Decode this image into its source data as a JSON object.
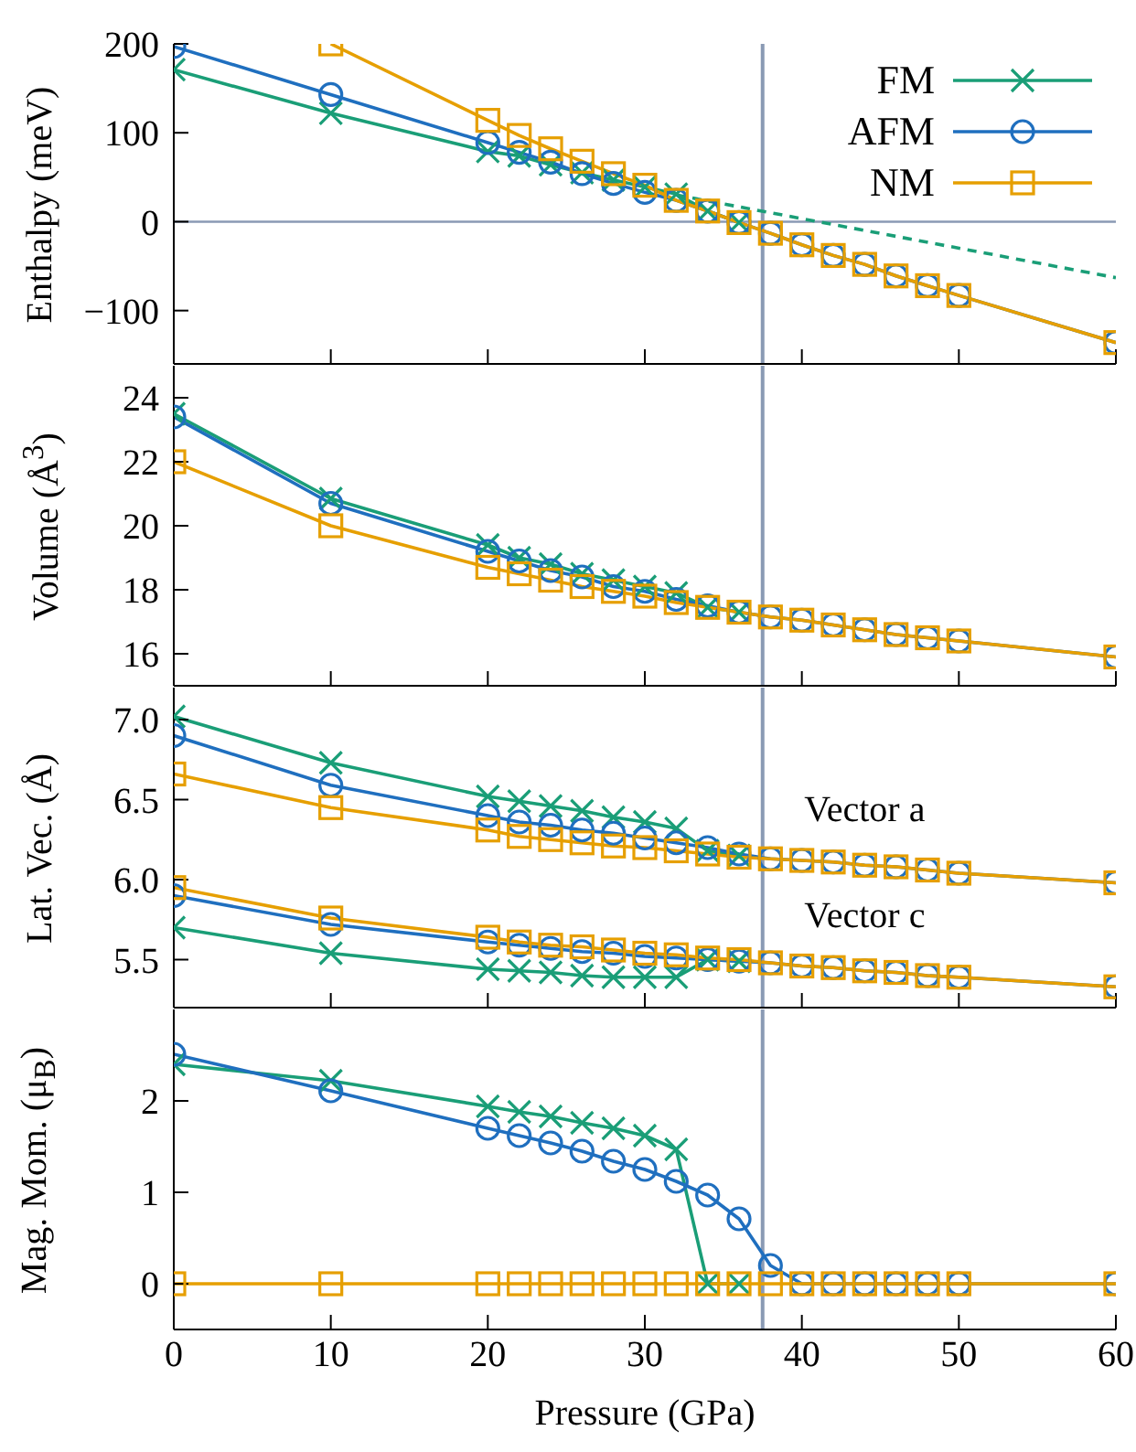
{
  "chart_data": [
    {
      "type": "line",
      "ylabel": "Enthalpy (meV)",
      "xlim": [
        0,
        60
      ],
      "xticks": [
        0,
        10,
        20,
        30,
        40,
        50,
        60
      ],
      "ylim": [
        -160,
        200
      ],
      "yticks": [
        {
          "value": -100,
          "label": "−100"
        },
        0,
        100,
        200
      ],
      "tick_labels": "y",
      "legend": "top right",
      "ref_lines": [
        {
          "axis": "x",
          "value": 37.5,
          "color": "#8a9ab4"
        },
        {
          "axis": "y",
          "value": 0,
          "color": "#8a9ab4"
        }
      ],
      "series": [
        {
          "name": "FM",
          "color": "#1a9e77",
          "marker": "cross",
          "x": [
            0,
            10,
            20,
            22,
            24,
            26,
            28,
            30,
            32,
            34,
            36
          ],
          "values": [
            171,
            122,
            79,
            74,
            64,
            55,
            47,
            39,
            31,
            12,
            -1
          ]
        },
        {
          "name": "AFM",
          "color": "#1f6fbf",
          "marker": "circle",
          "x": [
            0,
            10,
            20,
            22,
            24,
            26,
            28,
            30,
            32,
            34,
            36,
            38,
            40,
            42,
            44,
            46,
            48,
            50,
            60
          ],
          "values": [
            197,
            143,
            89,
            78,
            67,
            54,
            43,
            33,
            24,
            12,
            -1,
            -13,
            -26,
            -38,
            -48,
            -61,
            -72,
            -83,
            -136
          ]
        },
        {
          "name": "NM",
          "color": "#e69f00",
          "marker": "square",
          "x": [
            10,
            20,
            22,
            24,
            26,
            28,
            30,
            32,
            34,
            36,
            38,
            40,
            42,
            44,
            46,
            48,
            50,
            60
          ],
          "values": [
            200,
            114,
            97,
            82,
            68,
            54,
            41,
            24,
            12,
            -1,
            -13,
            -26,
            -38,
            -48,
            -61,
            -72,
            -83,
            -136
          ]
        },
        {
          "type": "line",
          "color": "#1a9e77",
          "marker": "none",
          "line_style": "dashed",
          "x": [
            32,
            60
          ],
          "values": [
            30,
            -63
          ]
        }
      ]
    },
    {
      "type": "line",
      "ylabel": "Volume (Å$^{3}$)",
      "xlim": [
        0,
        60
      ],
      "xticks": [
        0,
        10,
        20,
        30,
        40,
        50,
        60
      ],
      "ylim": [
        15,
        25
      ],
      "yticks": [
        16,
        18,
        20,
        22,
        24
      ],
      "tick_labels": "y",
      "ref_lines": [
        {
          "axis": "x",
          "value": 37.5,
          "color": "#8a9ab4"
        }
      ],
      "series": [
        {
          "color": "#1a9e77",
          "marker": "cross",
          "x": [
            0,
            10,
            20,
            22,
            24,
            26,
            28,
            30,
            32,
            34,
            36
          ],
          "values": [
            23.5,
            20.85,
            19.4,
            19.0,
            18.8,
            18.5,
            18.3,
            18.1,
            17.9,
            17.45,
            17.3
          ]
        },
        {
          "color": "#1f6fbf",
          "marker": "circle",
          "x": [
            0,
            10,
            20,
            22,
            24,
            26,
            28,
            30,
            32,
            34,
            36,
            38,
            40,
            42,
            44,
            46,
            48,
            50,
            60
          ],
          "values": [
            23.4,
            20.7,
            19.2,
            18.9,
            18.6,
            18.4,
            18.1,
            17.95,
            17.7,
            17.5,
            17.3,
            17.15,
            17.05,
            16.9,
            16.75,
            16.6,
            16.5,
            16.4,
            15.9
          ]
        },
        {
          "color": "#e69f00",
          "marker": "square",
          "x": [
            0,
            10,
            20,
            22,
            24,
            26,
            28,
            30,
            32,
            34,
            36,
            38,
            40,
            42,
            44,
            46,
            48,
            50,
            60
          ],
          "values": [
            22.0,
            20.0,
            18.7,
            18.5,
            18.3,
            18.1,
            17.95,
            17.8,
            17.6,
            17.45,
            17.3,
            17.15,
            17.05,
            16.9,
            16.75,
            16.6,
            16.5,
            16.4,
            15.9
          ]
        }
      ]
    },
    {
      "type": "line",
      "ylabel": "Lat. Vec. (Å)",
      "xlim": [
        0,
        60
      ],
      "xticks": [
        0,
        10,
        20,
        30,
        40,
        50,
        60
      ],
      "ylim": [
        5.2,
        7.2
      ],
      "yticks": [
        5.5,
        {
          "value": 6,
          "label": "6.0"
        },
        6.5,
        {
          "value": 7,
          "label": "7.0"
        }
      ],
      "tick_labels": "y",
      "ref_lines": [
        {
          "axis": "x",
          "value": 37.5,
          "color": "#8a9ab4"
        }
      ],
      "annotations": [
        {
          "text": "Vector a",
          "x": 44,
          "y": 6.09
        },
        {
          "text": "Vector c",
          "x": 44,
          "y": 5.43
        }
      ],
      "series": [
        {
          "color": "#1a9e77",
          "marker": "cross",
          "x": [
            0,
            10,
            20,
            22,
            24,
            26,
            28,
            30,
            32,
            34,
            36
          ],
          "values": [
            7.02,
            6.73,
            6.52,
            6.49,
            6.46,
            6.43,
            6.39,
            6.36,
            6.32,
            6.18,
            6.15
          ]
        },
        {
          "color": "#1f6fbf",
          "marker": "circle",
          "x": [
            0,
            10,
            20,
            22,
            24,
            26,
            28,
            30,
            32,
            34,
            36,
            38,
            40,
            42,
            44,
            46,
            48,
            50,
            60
          ],
          "values": [
            6.9,
            6.59,
            6.4,
            6.36,
            6.34,
            6.31,
            6.29,
            6.26,
            6.23,
            6.2,
            6.16,
            6.13,
            6.12,
            6.11,
            6.09,
            6.08,
            6.06,
            6.04,
            5.98
          ]
        },
        {
          "color": "#e69f00",
          "marker": "square",
          "x": [
            0,
            10,
            20,
            22,
            24,
            26,
            28,
            30,
            32,
            34,
            36,
            38,
            40,
            42,
            44,
            46,
            48,
            50,
            60
          ],
          "values": [
            6.66,
            6.45,
            6.31,
            6.27,
            6.25,
            6.23,
            6.21,
            6.2,
            6.18,
            6.16,
            6.14,
            6.13,
            6.12,
            6.11,
            6.09,
            6.08,
            6.06,
            6.04,
            5.98
          ]
        },
        {
          "color": "#1a9e77",
          "marker": "cross",
          "x": [
            0,
            10,
            20,
            22,
            24,
            26,
            28,
            30,
            32,
            34,
            36
          ],
          "values": [
            5.7,
            5.54,
            5.44,
            5.43,
            5.42,
            5.4,
            5.39,
            5.39,
            5.39,
            5.5,
            5.49
          ]
        },
        {
          "color": "#1f6fbf",
          "marker": "circle",
          "x": [
            0,
            10,
            20,
            22,
            24,
            26,
            28,
            30,
            32,
            34,
            36,
            38,
            40,
            42,
            44,
            46,
            48,
            50,
            60
          ],
          "values": [
            5.9,
            5.72,
            5.61,
            5.59,
            5.57,
            5.55,
            5.54,
            5.52,
            5.51,
            5.5,
            5.49,
            5.48,
            5.46,
            5.45,
            5.43,
            5.42,
            5.4,
            5.39,
            5.33
          ]
        },
        {
          "color": "#e69f00",
          "marker": "square",
          "x": [
            0,
            10,
            20,
            22,
            24,
            26,
            28,
            30,
            32,
            34,
            36,
            38,
            40,
            42,
            44,
            46,
            48,
            50,
            60
          ],
          "values": [
            5.95,
            5.76,
            5.64,
            5.61,
            5.59,
            5.58,
            5.56,
            5.54,
            5.53,
            5.51,
            5.5,
            5.48,
            5.46,
            5.45,
            5.43,
            5.42,
            5.4,
            5.39,
            5.33
          ]
        }
      ]
    },
    {
      "type": "line",
      "ylabel": "Mag. Mom. (μ$_{B}$)",
      "xlabel": "Pressure (GPa)",
      "xlim": [
        0,
        60
      ],
      "xticks": [
        0,
        10,
        20,
        30,
        40,
        50,
        60
      ],
      "ylim": [
        -0.5,
        3
      ],
      "yticks": [
        0,
        1,
        2
      ],
      "ref_lines": [
        {
          "axis": "x",
          "value": 37.5,
          "color": "#8a9ab4"
        }
      ],
      "series": [
        {
          "color": "#1a9e77",
          "marker": "cross",
          "x": [
            0,
            10,
            20,
            22,
            24,
            26,
            28,
            30,
            32,
            34,
            36
          ],
          "values": [
            2.4,
            2.22,
            1.94,
            1.88,
            1.83,
            1.76,
            1.7,
            1.62,
            1.47,
            0,
            0
          ]
        },
        {
          "color": "#1f6fbf",
          "marker": "circle",
          "x": [
            0,
            10,
            20,
            22,
            24,
            26,
            28,
            30,
            32,
            34,
            36,
            38,
            40,
            42,
            44,
            46,
            48,
            50,
            60
          ],
          "values": [
            2.51,
            2.11,
            1.7,
            1.62,
            1.54,
            1.45,
            1.34,
            1.25,
            1.12,
            0.97,
            0.71,
            0.2,
            0,
            0,
            0,
            0,
            0,
            0,
            0
          ]
        },
        {
          "color": "#e69f00",
          "marker": "square",
          "x": [
            0,
            10,
            20,
            22,
            24,
            26,
            28,
            30,
            32,
            34,
            36,
            38,
            40,
            42,
            44,
            46,
            48,
            50,
            60
          ],
          "values": [
            0,
            0,
            0,
            0,
            0,
            0,
            0,
            0,
            0,
            0,
            0,
            0,
            0,
            0,
            0,
            0,
            0,
            0,
            0
          ]
        }
      ]
    }
  ]
}
